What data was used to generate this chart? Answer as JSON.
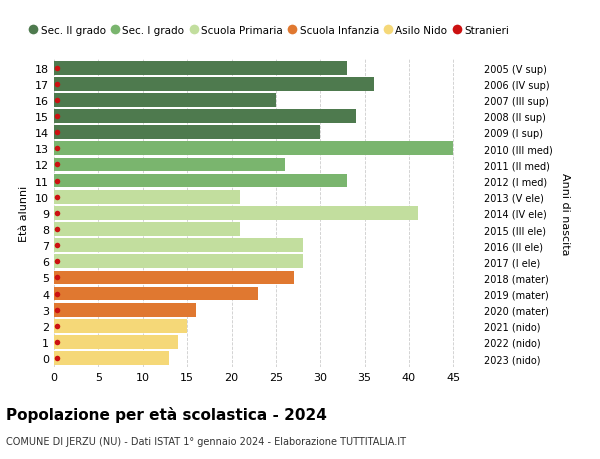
{
  "ages": [
    18,
    17,
    16,
    15,
    14,
    13,
    12,
    11,
    10,
    9,
    8,
    7,
    6,
    5,
    4,
    3,
    2,
    1,
    0
  ],
  "values": [
    33,
    36,
    25,
    34,
    30,
    45,
    26,
    33,
    21,
    41,
    21,
    28,
    28,
    27,
    23,
    16,
    15,
    14,
    13
  ],
  "right_labels": [
    "2005 (V sup)",
    "2006 (IV sup)",
    "2007 (III sup)",
    "2008 (II sup)",
    "2009 (I sup)",
    "2010 (III med)",
    "2011 (II med)",
    "2012 (I med)",
    "2013 (V ele)",
    "2014 (IV ele)",
    "2015 (III ele)",
    "2016 (II ele)",
    "2017 (I ele)",
    "2018 (mater)",
    "2019 (mater)",
    "2020 (mater)",
    "2021 (nido)",
    "2022 (nido)",
    "2023 (nido)"
  ],
  "bar_colors": [
    "#4e7a4e",
    "#4e7a4e",
    "#4e7a4e",
    "#4e7a4e",
    "#4e7a4e",
    "#7ab56e",
    "#7ab56e",
    "#7ab56e",
    "#c2de9e",
    "#c2de9e",
    "#c2de9e",
    "#c2de9e",
    "#c2de9e",
    "#e07830",
    "#e07830",
    "#e07830",
    "#f5d878",
    "#f5d878",
    "#f5d878"
  ],
  "legend_labels": [
    "Sec. II grado",
    "Sec. I grado",
    "Scuola Primaria",
    "Scuola Infanzia",
    "Asilo Nido",
    "Stranieri"
  ],
  "legend_colors": [
    "#4e7a4e",
    "#7ab56e",
    "#c2de9e",
    "#e07830",
    "#f5d878",
    "#cc1111"
  ],
  "title": "Popolazione per età scolastica - 2024",
  "subtitle": "COMUNE DI JERZU (NU) - Dati ISTAT 1° gennaio 2024 - Elaborazione TUTTITALIA.IT",
  "ylabel": "Età alunni",
  "right_ylabel": "Anni di nascita",
  "xlim": [
    0,
    48
  ],
  "xticks": [
    0,
    5,
    10,
    15,
    20,
    25,
    30,
    35,
    40,
    45
  ],
  "background_color": "#ffffff",
  "grid_color": "#cccccc",
  "bar_height": 0.85
}
